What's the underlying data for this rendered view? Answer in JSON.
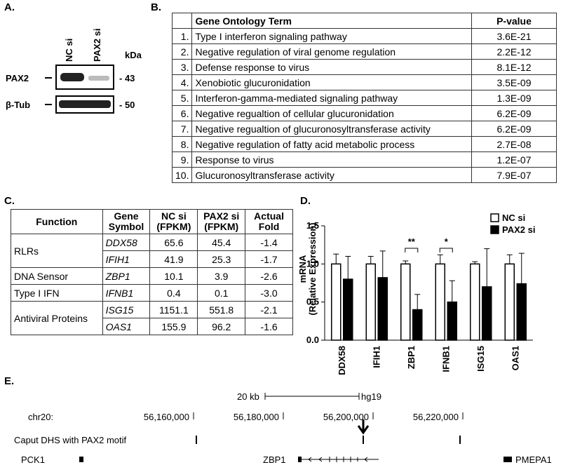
{
  "panel_a": {
    "label": "A.",
    "lanes": [
      "NC si",
      "PAX2 si"
    ],
    "unit": "kDa",
    "rows": [
      {
        "protein": "PAX2",
        "size": "- 43"
      },
      {
        "protein": "β-Tub",
        "size": "- 50"
      }
    ]
  },
  "panel_b": {
    "label": "B.",
    "header": [
      "Gene Ontology Term",
      "P-value"
    ],
    "rows": [
      [
        "1.",
        "Type I interferon signaling pathway",
        "3.6E-21"
      ],
      [
        "2.",
        "Negative regulation of viral genome regulation",
        "2.2E-12"
      ],
      [
        "3.",
        "Defense response to virus",
        "8.1E-12"
      ],
      [
        "4.",
        "Xenobiotic glucuronidation",
        "3.5E-09"
      ],
      [
        "5.",
        "Interferon-gamma-mediated signaling pathway",
        "1.3E-09"
      ],
      [
        "6.",
        "Negative regualtion of cellular glucuronidation",
        "6.2E-09"
      ],
      [
        "7.",
        "Negative regualtion of glucuronosyltransferase activity",
        "6.2E-09"
      ],
      [
        "8.",
        "Negative regulation of fatty acid metabolic process",
        "2.7E-08"
      ],
      [
        "9.",
        "Response to virus",
        "1.2E-07"
      ],
      [
        "10.",
        "Glucuronosyltransferase activity",
        "7.9E-07"
      ]
    ]
  },
  "panel_c": {
    "label": "C.",
    "header": [
      "Function",
      "Gene Symbol",
      "NC si (FPKM)",
      "PAX2 si (FPKM)",
      "Actual Fold"
    ],
    "groups": [
      {
        "function": "RLRs",
        "genes": [
          [
            "DDX58",
            "65.6",
            "45.4",
            "-1.4"
          ],
          [
            "IFIH1",
            "41.9",
            "25.3",
            "-1.7"
          ]
        ]
      },
      {
        "function": "DNA Sensor",
        "genes": [
          [
            "ZBP1",
            "10.1",
            "3.9",
            "-2.6"
          ]
        ]
      },
      {
        "function": "Type I IFN",
        "genes": [
          [
            "IFNB1",
            "0.4",
            "0.1",
            "-3.0"
          ]
        ]
      },
      {
        "function": "Antiviral Proteins",
        "genes": [
          [
            "ISG15",
            "1151.1",
            "551.8",
            "-2.1"
          ],
          [
            "OAS1",
            "155.9",
            "96.2",
            "-1.6"
          ]
        ]
      }
    ]
  },
  "chart_data": {
    "type": "bar",
    "label": "D.",
    "ylabel": [
      "mRNA",
      "(Relative Expression)"
    ],
    "categories": [
      "DDX58",
      "IFIH1",
      "ZBP1",
      "IFNB1",
      "ISG15",
      "OAS1"
    ],
    "series": [
      {
        "name": "NC si",
        "color": "#ffffff",
        "values": [
          1.0,
          1.0,
          1.0,
          1.0,
          1.0,
          1.0
        ],
        "errors": [
          0.13,
          0.1,
          0.04,
          0.12,
          0.03,
          0.12
        ]
      },
      {
        "name": "PAX2 si",
        "color": "#000000",
        "values": [
          0.8,
          0.82,
          0.4,
          0.5,
          0.7,
          0.74
        ],
        "errors": [
          0.3,
          0.35,
          0.2,
          0.28,
          0.5,
          0.4
        ]
      }
    ],
    "ylim": [
      0,
      1.5
    ],
    "yticks": [
      {
        "value": 0,
        "label": "0.0"
      },
      0.5,
      {
        "value": 1,
        "label": "1.0"
      },
      1.5
    ],
    "annotations": [
      "**",
      "*"
    ]
  },
  "panel_e": {
    "label": "E.",
    "scale": "20 kb",
    "assembly": "hg19",
    "chrom": "chr20:",
    "positions": [
      "56,160,000",
      "56,180,000",
      "56,200,000",
      "56,220,000"
    ],
    "track": "Caput DHS with PAX2 motif",
    "genes": [
      "PCK1",
      "ZBP1",
      "PMEPA1"
    ]
  }
}
